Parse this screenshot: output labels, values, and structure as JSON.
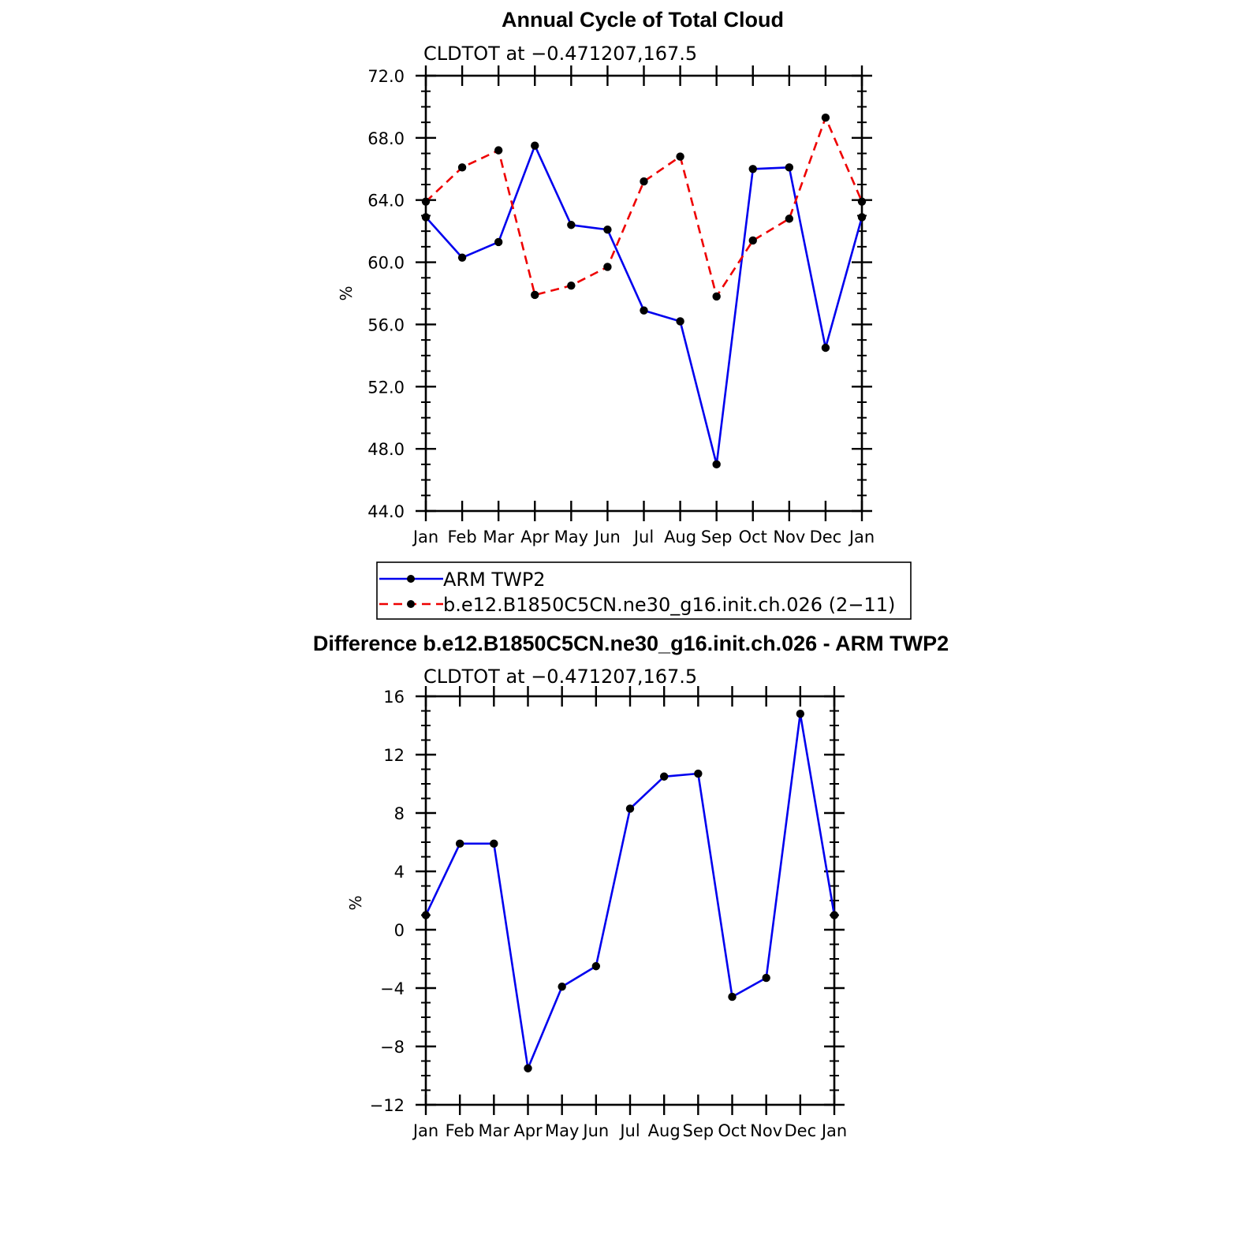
{
  "chart_data": [
    {
      "type": "line",
      "title": "Annual Cycle of Total Cloud",
      "subtitle": "CLDTOT at −0.471207,167.5",
      "xlabel": "",
      "ylabel": "%",
      "categories": [
        "Jan",
        "Feb",
        "Mar",
        "Apr",
        "May",
        "Jun",
        "Jul",
        "Aug",
        "Sep",
        "Oct",
        "Nov",
        "Dec",
        "Jan"
      ],
      "ylim": [
        44,
        72
      ],
      "yticks": [
        44,
        48,
        52,
        56,
        60,
        64,
        68,
        72
      ],
      "ytick_labels": [
        "44.0",
        "48.0",
        "52.0",
        "56.0",
        "60.0",
        "64.0",
        "68.0",
        "72.0"
      ],
      "y_minor_step": 1,
      "series": [
        {
          "name": "ARM TWP2",
          "color": "#0000ee",
          "dash": "solid",
          "values": [
            62.9,
            60.3,
            61.3,
            67.5,
            62.4,
            62.1,
            56.9,
            56.2,
            47.0,
            66.0,
            66.1,
            54.5,
            62.9
          ]
        },
        {
          "name": "b.e12.B1850C5CN.ne30_g16.init.ch.026 (2−11)",
          "color": "#ee0000",
          "dash": "dashed",
          "values": [
            63.9,
            66.1,
            67.2,
            57.9,
            58.5,
            59.7,
            65.2,
            66.8,
            57.8,
            61.4,
            62.8,
            69.3,
            63.9
          ]
        }
      ],
      "legend": {
        "position": "bottom",
        "entries": [
          "ARM TWP2",
          "b.e12.B1850C5CN.ne30_g16.init.ch.026 (2−11)"
        ]
      }
    },
    {
      "type": "line",
      "title": "Difference b.e12.B1850C5CN.ne30_g16.init.ch.026 - ARM TWP2",
      "subtitle": "CLDTOT at −0.471207,167.5",
      "xlabel": "",
      "ylabel": "%",
      "categories": [
        "Jan",
        "Feb",
        "Mar",
        "Apr",
        "May",
        "Jun",
        "Jul",
        "Aug",
        "Sep",
        "Oct",
        "Nov",
        "Dec",
        "Jan"
      ],
      "ylim": [
        -12,
        16
      ],
      "yticks": [
        -12,
        -8,
        -4,
        0,
        4,
        8,
        12,
        16
      ],
      "ytick_labels": [
        "−12",
        "−8",
        "−4",
        "0",
        "4",
        "8",
        "12",
        "16"
      ],
      "y_minor_step": 1,
      "series": [
        {
          "name": "Difference",
          "color": "#0000ee",
          "dash": "solid",
          "values": [
            1.0,
            5.9,
            5.9,
            -9.5,
            -3.9,
            -2.5,
            8.3,
            10.5,
            10.7,
            -4.6,
            -3.3,
            14.8,
            1.0
          ]
        }
      ]
    }
  ]
}
